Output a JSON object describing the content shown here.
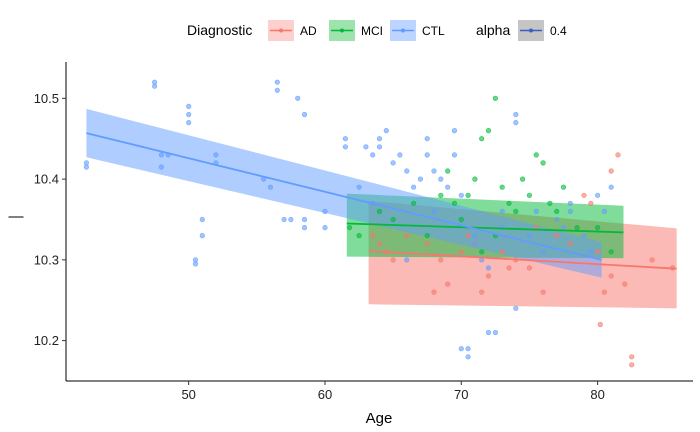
{
  "chart_data": {
    "type": "scatter",
    "xlabel": "Age",
    "ylabel": "—",
    "xlim": [
      41,
      87
    ],
    "ylim": [
      10.15,
      10.545
    ],
    "x_ticks": [
      50,
      60,
      70,
      80
    ],
    "y_ticks": [
      10.2,
      10.3,
      10.4,
      10.5
    ],
    "grid": false,
    "legend": {
      "position": "top",
      "color_title": "Diagnostic",
      "alpha_title": "alpha",
      "alpha_label": "0.4"
    },
    "colors": {
      "AD": "#F8766D",
      "MCI": "#00BA38",
      "CTL": "#619CFF",
      "alpha_key": "#3B5FC0"
    },
    "series": [
      {
        "name": "AD",
        "color": "#F8766D",
        "points": [
          [
            63.5,
            10.33
          ],
          [
            64.0,
            10.32
          ],
          [
            64.5,
            10.31
          ],
          [
            65.0,
            10.3
          ],
          [
            66.0,
            10.33
          ],
          [
            67.5,
            10.32
          ],
          [
            68.5,
            10.3
          ],
          [
            69.0,
            10.27
          ],
          [
            70.0,
            10.31
          ],
          [
            70.5,
            10.33
          ],
          [
            71.0,
            10.32
          ],
          [
            72.0,
            10.28
          ],
          [
            73.0,
            10.31
          ],
          [
            74.0,
            10.3
          ],
          [
            75.0,
            10.29
          ],
          [
            75.5,
            10.34
          ],
          [
            76.0,
            10.26
          ],
          [
            77.0,
            10.33
          ],
          [
            78.0,
            10.32
          ],
          [
            79.0,
            10.38
          ],
          [
            79.5,
            10.37
          ],
          [
            80.0,
            10.31
          ],
          [
            80.2,
            10.22
          ],
          [
            80.5,
            10.26
          ],
          [
            81.0,
            10.28
          ],
          [
            81.5,
            10.43
          ],
          [
            81.0,
            10.41
          ],
          [
            82.0,
            10.27
          ],
          [
            82.5,
            10.18
          ],
          [
            82.5,
            10.17
          ],
          [
            85.5,
            10.29
          ],
          [
            84.0,
            10.3
          ],
          [
            68.0,
            10.26
          ],
          [
            71.5,
            10.26
          ],
          [
            73.5,
            10.29
          ]
        ],
        "fit": {
          "x_range": [
            63.2,
            85.8
          ],
          "y_range": [
            10.311,
            10.289
          ]
        },
        "ci": {
          "upper": [
            10.373,
            10.339
          ],
          "lower": [
            10.245,
            10.24
          ]
        }
      },
      {
        "name": "MCI",
        "color": "#00BA38",
        "points": [
          [
            61.8,
            10.34
          ],
          [
            62.5,
            10.33
          ],
          [
            64.0,
            10.36
          ],
          [
            65.0,
            10.35
          ],
          [
            66.5,
            10.37
          ],
          [
            67.5,
            10.33
          ],
          [
            68.5,
            10.38
          ],
          [
            69.5,
            10.37
          ],
          [
            70.5,
            10.38
          ],
          [
            71.0,
            10.4
          ],
          [
            71.5,
            10.45
          ],
          [
            72.0,
            10.46
          ],
          [
            72.5,
            10.5
          ],
          [
            73.0,
            10.39
          ],
          [
            73.5,
            10.37
          ],
          [
            74.0,
            10.36
          ],
          [
            74.5,
            10.4
          ],
          [
            75.0,
            10.38
          ],
          [
            75.5,
            10.43
          ],
          [
            76.0,
            10.42
          ],
          [
            76.5,
            10.37
          ],
          [
            77.0,
            10.36
          ],
          [
            77.5,
            10.39
          ],
          [
            78.5,
            10.34
          ],
          [
            80.0,
            10.34
          ],
          [
            81.0,
            10.31
          ],
          [
            69.0,
            10.41
          ],
          [
            70.0,
            10.35
          ],
          [
            72.5,
            10.33
          ],
          [
            71.5,
            10.31
          ]
        ],
        "fit": {
          "x_range": [
            61.6,
            81.9
          ],
          "y_range": [
            10.345,
            10.334
          ]
        },
        "ci": {
          "upper": [
            10.382,
            10.367
          ],
          "lower": [
            10.304,
            10.302
          ]
        }
      },
      {
        "name": "CTL",
        "color": "#619CFF",
        "points": [
          [
            42.5,
            10.42
          ],
          [
            42.5,
            10.415
          ],
          [
            47.5,
            10.52
          ],
          [
            47.5,
            10.515
          ],
          [
            48.0,
            10.43
          ],
          [
            48.0,
            10.415
          ],
          [
            48.5,
            10.43
          ],
          [
            50.0,
            10.49
          ],
          [
            50.0,
            10.48
          ],
          [
            50.0,
            10.47
          ],
          [
            50.5,
            10.3
          ],
          [
            50.5,
            10.295
          ],
          [
            51.0,
            10.35
          ],
          [
            51.0,
            10.33
          ],
          [
            52.0,
            10.43
          ],
          [
            52.0,
            10.42
          ],
          [
            55.5,
            10.4
          ],
          [
            56.0,
            10.39
          ],
          [
            56.5,
            10.52
          ],
          [
            56.5,
            10.51
          ],
          [
            57.0,
            10.35
          ],
          [
            57.5,
            10.35
          ],
          [
            58.0,
            10.5
          ],
          [
            58.5,
            10.48
          ],
          [
            58.5,
            10.35
          ],
          [
            58.5,
            10.34
          ],
          [
            60.0,
            10.36
          ],
          [
            60.0,
            10.34
          ],
          [
            61.5,
            10.45
          ],
          [
            61.5,
            10.44
          ],
          [
            62.5,
            10.39
          ],
          [
            63.0,
            10.44
          ],
          [
            63.5,
            10.43
          ],
          [
            64.0,
            10.45
          ],
          [
            64.0,
            10.44
          ],
          [
            64.5,
            10.46
          ],
          [
            65.0,
            10.42
          ],
          [
            65.5,
            10.43
          ],
          [
            66.0,
            10.41
          ],
          [
            66.5,
            10.39
          ],
          [
            67.0,
            10.4
          ],
          [
            67.5,
            10.45
          ],
          [
            67.5,
            10.43
          ],
          [
            68.0,
            10.41
          ],
          [
            68.5,
            10.4
          ],
          [
            69.0,
            10.39
          ],
          [
            69.5,
            10.46
          ],
          [
            69.5,
            10.43
          ],
          [
            70.0,
            10.38
          ],
          [
            70.0,
            10.19
          ],
          [
            70.5,
            10.18
          ],
          [
            70.5,
            10.19
          ],
          [
            71.0,
            10.33
          ],
          [
            71.0,
            10.32
          ],
          [
            71.5,
            10.3
          ],
          [
            72.0,
            10.29
          ],
          [
            72.0,
            10.21
          ],
          [
            72.5,
            10.21
          ],
          [
            73.0,
            10.36
          ],
          [
            73.0,
            10.34
          ],
          [
            74.0,
            10.48
          ],
          [
            74.0,
            10.47
          ],
          [
            74.0,
            10.24
          ],
          [
            75.0,
            10.33
          ],
          [
            75.5,
            10.36
          ],
          [
            76.0,
            10.31
          ],
          [
            77.0,
            10.35
          ],
          [
            77.5,
            10.34
          ],
          [
            78.0,
            10.37
          ],
          [
            78.0,
            10.36
          ],
          [
            79.0,
            10.33
          ],
          [
            79.5,
            10.31
          ],
          [
            80.0,
            10.38
          ],
          [
            80.5,
            10.36
          ],
          [
            81.0,
            10.39
          ],
          [
            68.0,
            10.36
          ],
          [
            66.0,
            10.3
          ],
          [
            63.5,
            10.37
          ]
        ],
        "fit": {
          "x_range": [
            42.5,
            80.3
          ],
          "y_range": [
            10.457,
            10.3
          ]
        },
        "ci": {
          "upper": [
            10.487,
            10.322
          ],
          "lower": [
            10.427,
            10.278
          ]
        }
      }
    ]
  }
}
